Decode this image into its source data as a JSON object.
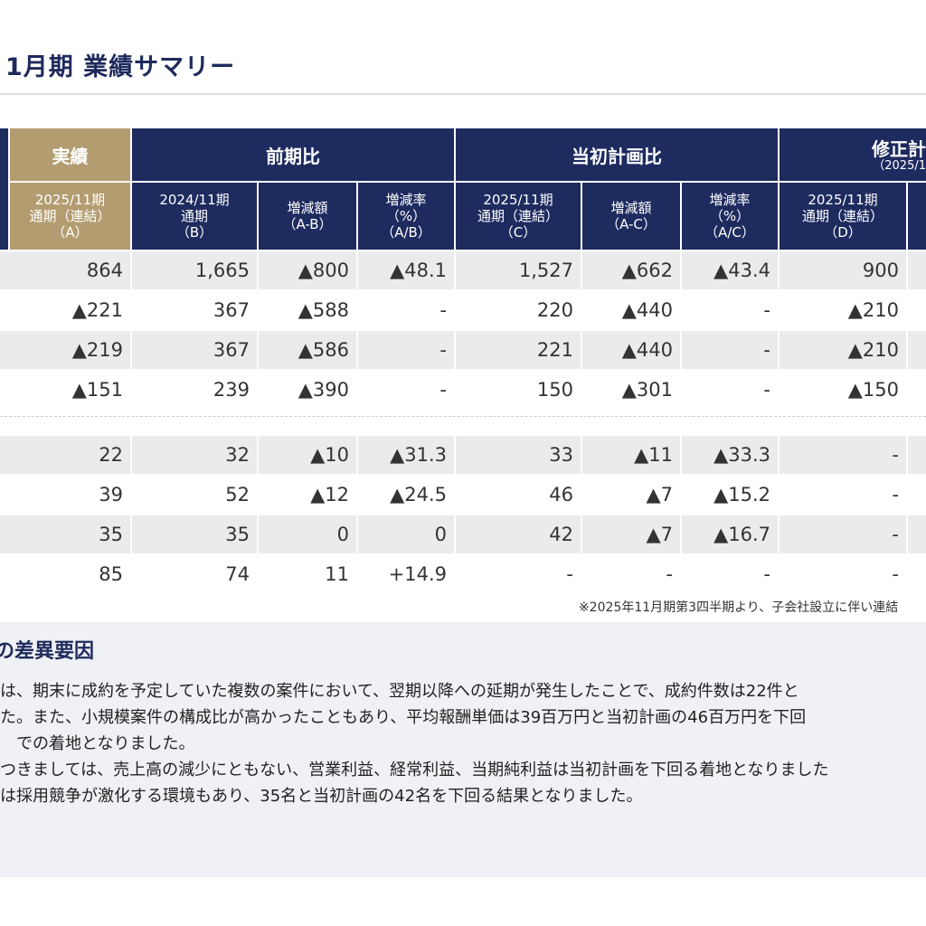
{
  "page": {
    "title": "1月期 業績サマリー",
    "footnote": "※2025年11月期第3四半期より、子会社設立に伴い連結"
  },
  "table": {
    "groups": {
      "actual": "実績",
      "prev": "前期比",
      "plan": "当初計画比",
      "revised": "修正計",
      "revised_sub": "（2025/1"
    },
    "columns": [
      "2025/11期\n通期（連結）\n（A）",
      "2024/11期\n通期\n（B）",
      "増減額\n（A-B）",
      "増減率\n（%）\n（A/B）",
      "2025/11期\n通期（連結）\n（C）",
      "増減額\n（A-C）",
      "増減率\n（%）\n（A/C）",
      "2025/11期\n通期（連結）\n（D）"
    ],
    "rows": [
      [
        "864",
        "1,665",
        "▲800",
        "▲48.1",
        "1,527",
        "▲662",
        "▲43.4",
        "900"
      ],
      [
        "▲221",
        "367",
        "▲588",
        "-",
        "220",
        "▲440",
        "-",
        "▲210"
      ],
      [
        "▲219",
        "367",
        "▲586",
        "-",
        "221",
        "▲440",
        "-",
        "▲210"
      ],
      [
        "▲151",
        "239",
        "▲390",
        "-",
        "150",
        "▲301",
        "-",
        "▲150"
      ],
      [
        "22",
        "32",
        "▲10",
        "▲31.3",
        "33",
        "▲11",
        "▲33.3",
        "-"
      ],
      [
        "39",
        "52",
        "▲12",
        "▲24.5",
        "46",
        "▲7",
        "▲15.2",
        "-"
      ],
      [
        "35",
        "35",
        "0",
        "0",
        "42",
        "▲7",
        "▲16.7",
        "-"
      ],
      [
        "85",
        "74",
        "11",
        "+14.9",
        "-",
        "-",
        "-",
        "-"
      ]
    ]
  },
  "variance": {
    "heading": "差異要因",
    "lines": [
      "は、期末に成約を予定していた複数の案件において、翌期以降への延期が発生したことで、成約件数は22件と",
      "た。また、小規模案件の構成比が高かったこともあり、平均報酬単価は39百万円と当初計画の46百万円を下回",
      "での着地となりました。",
      "つきましては、売上高の減少にともない、営業利益、経常利益、当期純利益は当初計画を下回る着地となりました",
      "は採用競争が激化する環境もあり、35名と当初計画の42名を下回る結果となりました。"
    ]
  },
  "colors": {
    "navy": "#1e2b5f",
    "gold": "#b39d70",
    "row_gray": "#ebebed",
    "panel": "#eff1f5",
    "title": "#1f2a5c"
  }
}
